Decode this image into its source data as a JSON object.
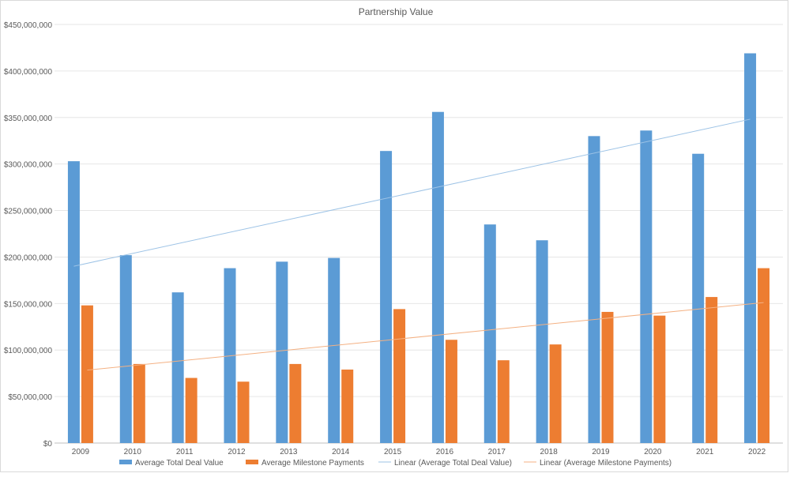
{
  "chart_data": {
    "type": "bar",
    "title": "Partnership Value",
    "xlabel": "",
    "ylabel": "",
    "categories": [
      "2009",
      "2010",
      "2011",
      "2012",
      "2013",
      "2014",
      "2015",
      "2016",
      "2017",
      "2018",
      "2019",
      "2020",
      "2021",
      "2022"
    ],
    "series": [
      {
        "name": "Average Total Deal Value",
        "color": "#5b9bd5",
        "values": [
          303000000,
          202000000,
          162000000,
          188000000,
          195000000,
          199000000,
          314000000,
          356000000,
          235000000,
          218000000,
          330000000,
          336000000,
          311000000,
          419000000
        ]
      },
      {
        "name": "Average Milestone Payments",
        "color": "#ed7d31",
        "values": [
          148000000,
          85000000,
          70000000,
          66000000,
          85000000,
          79000000,
          144000000,
          111000000,
          89000000,
          106000000,
          141000000,
          137000000,
          157000000,
          188000000
        ]
      }
    ],
    "trendlines": [
      {
        "name": "Linear (Average Total Deal Value)",
        "series_index": 0,
        "color": "#9dc3e6"
      },
      {
        "name": "Linear (Average Milestone Payments)",
        "series_index": 1,
        "color": "#f4b183"
      }
    ],
    "ylim": [
      0,
      450000000
    ],
    "yticks": [
      "$0",
      "$50,000,000",
      "$100,000,000",
      "$150,000,000",
      "$200,000,000",
      "$250,000,000",
      "$300,000,000",
      "$350,000,000",
      "$400,000,000",
      "$450,000,000"
    ],
    "grid": true,
    "legend_position": "bottom"
  }
}
